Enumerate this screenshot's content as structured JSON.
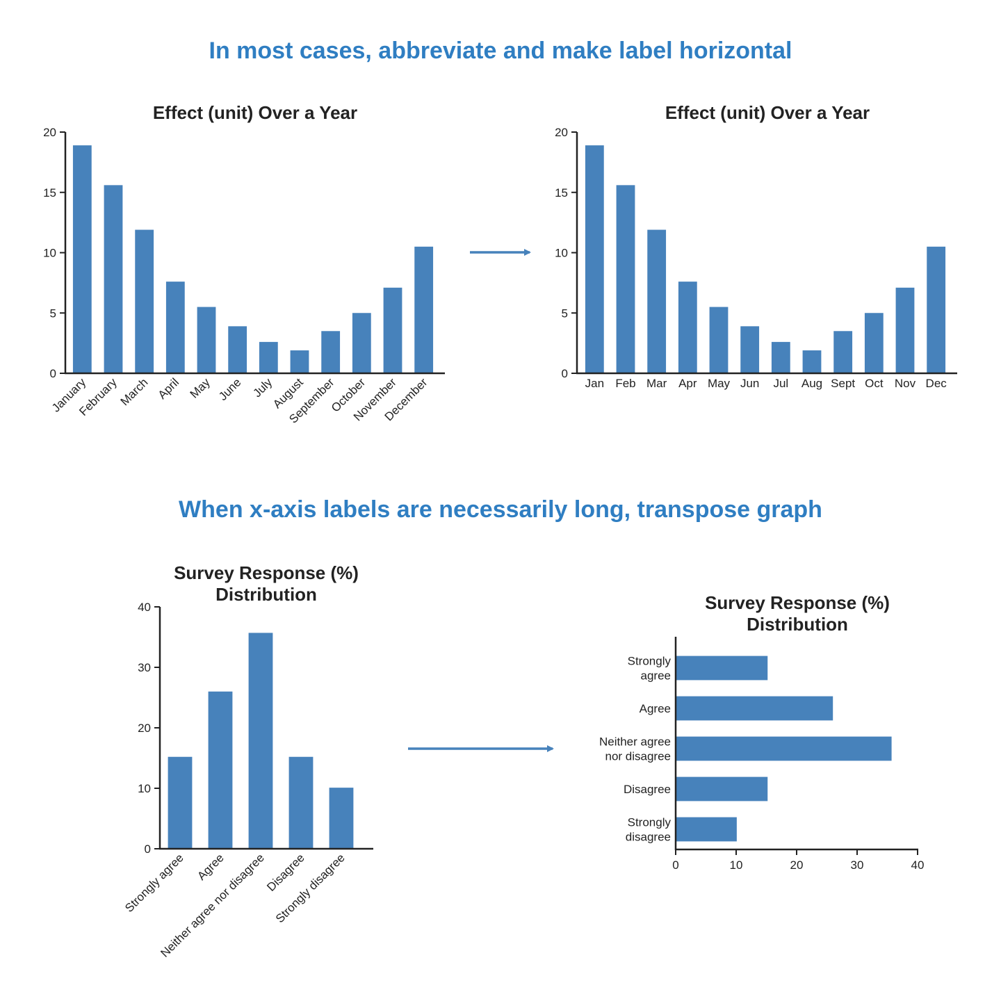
{
  "headings": {
    "top": "In most cases, abbreviate and make label horizontal",
    "bottom": "When x-axis labels are necessarily long, transpose graph"
  },
  "colors": {
    "heading": "#2f7ec2",
    "bar": "#4782bb",
    "axis": "#222222",
    "arrow": "#4782bb"
  },
  "icons": {
    "arrow": "arrow-right-icon"
  },
  "chart_data": [
    {
      "type": "bar",
      "title": "Effect (unit) Over a Year",
      "categories": [
        "January",
        "February",
        "March",
        "April",
        "May",
        "June",
        "July",
        "August",
        "September",
        "October",
        "November",
        "December"
      ],
      "values": [
        18.9,
        15.6,
        11.9,
        7.6,
        5.5,
        3.9,
        2.6,
        1.9,
        3.5,
        5.0,
        7.1,
        10.5
      ],
      "ylim": [
        0,
        20
      ],
      "yticks": [
        0,
        5,
        10,
        15,
        20
      ],
      "label_orientation": "rotated",
      "grid": false
    },
    {
      "type": "bar",
      "title": "Effect (unit) Over a Year",
      "categories": [
        "Jan",
        "Feb",
        "Mar",
        "Apr",
        "May",
        "Jun",
        "Jul",
        "Aug",
        "Sept",
        "Oct",
        "Nov",
        "Dec"
      ],
      "values": [
        18.9,
        15.6,
        11.9,
        7.6,
        5.5,
        3.9,
        2.6,
        1.9,
        3.5,
        5.0,
        7.1,
        10.5
      ],
      "ylim": [
        0,
        20
      ],
      "yticks": [
        0,
        5,
        10,
        15,
        20
      ],
      "label_orientation": "horizontal",
      "grid": false
    },
    {
      "type": "bar",
      "title": [
        "Survey Response (%)",
        "Distribution"
      ],
      "categories": [
        "Strongly agree",
        "Agree",
        "Neither agree nor disagree",
        "Disagree",
        "Strongly disagree"
      ],
      "values": [
        15.2,
        26,
        35.7,
        15.2,
        10.1
      ],
      "ylim": [
        0,
        40
      ],
      "yticks": [
        0,
        10,
        20,
        30,
        40
      ],
      "label_orientation": "rotated",
      "grid": false
    },
    {
      "type": "bar",
      "orientation": "horizontal",
      "title": [
        "Survey Response (%)",
        "Distribution"
      ],
      "categories": [
        [
          "Strongly",
          "agree"
        ],
        [
          "Agree"
        ],
        [
          "Neither agree",
          "nor disagree"
        ],
        [
          "Disagree"
        ],
        [
          "Strongly",
          "disagree"
        ]
      ],
      "values": [
        15.2,
        26,
        35.7,
        15.2,
        10.1
      ],
      "xlim": [
        0,
        40
      ],
      "xticks": [
        0,
        10,
        20,
        30,
        40
      ],
      "grid": false
    }
  ]
}
